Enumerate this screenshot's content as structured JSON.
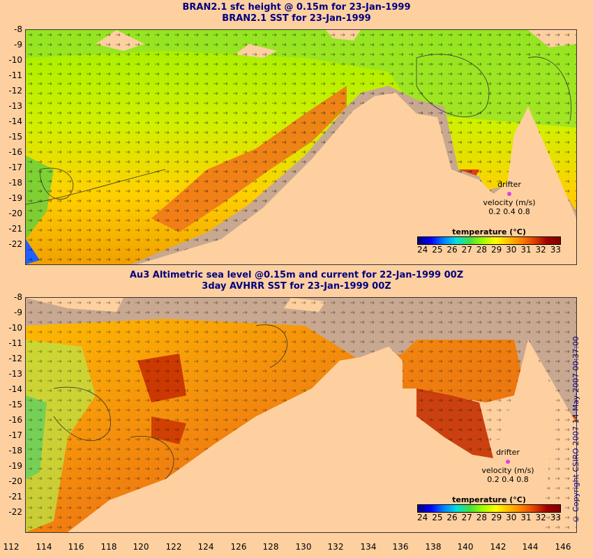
{
  "top": {
    "title_line1": "BRAN2.1 sfc height @ 0.15m for 23-Jan-1999",
    "title_line2": "BRAN2.1 SST for 23-Jan-1999"
  },
  "bottom": {
    "title_line1": "Au3 Altimetric sea level  @0.15m and current for 22-Jan-1999 00Z",
    "title_line2": "3day AVHRR SST for 23-Jan-1999 00Z"
  },
  "drifter": {
    "label1": "drifter",
    "label2": "velocity (m/s)",
    "speeds": "0.2 0.4 0.8"
  },
  "colorbar": {
    "title": "temperature (°C)",
    "ticks": [
      "24",
      "25",
      "26",
      "27",
      "28",
      "29",
      "30",
      "31",
      "32",
      "33"
    ]
  },
  "axes": {
    "lat_ticks": [
      "-8",
      "-9",
      "-10",
      "-11",
      "-12",
      "-13",
      "-14",
      "-15",
      "-16",
      "-17",
      "-18",
      "-19",
      "-20",
      "-21",
      "-22"
    ],
    "lon_ticks": [
      "112",
      "114",
      "116",
      "118",
      "120",
      "122",
      "124",
      "126",
      "128",
      "130",
      "132",
      "134",
      "136",
      "138",
      "140",
      "142",
      "144",
      "146"
    ]
  },
  "copyright": "© Copyright CSIRO 2007  14-May-2007 00:37:00",
  "colors": {
    "land": "#fed0a0",
    "shelf": "#c8a890",
    "warm": "#e07020",
    "hot": "#c02000",
    "mid": "#ffc000",
    "green": "#90e030",
    "title": "#000080"
  }
}
